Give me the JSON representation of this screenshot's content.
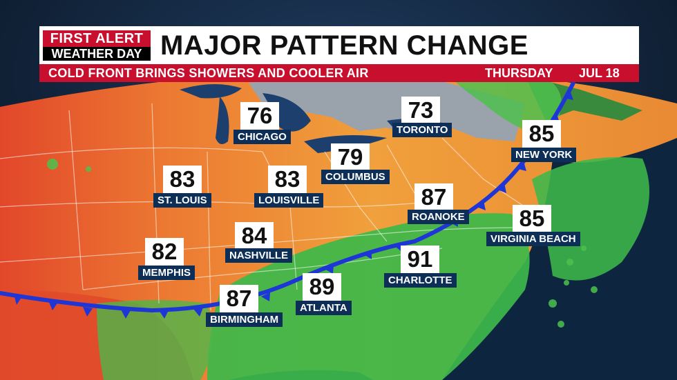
{
  "header": {
    "logo_line1": "FIRST ALERT",
    "logo_line2": "WEATHER DAY",
    "title": "MAJOR PATTERN CHANGE",
    "subtitle": "COLD FRONT BRINGS SHOWERS AND COOLER AIR",
    "day": "THURSDAY",
    "date": "JUL 18"
  },
  "cities": [
    {
      "name": "CHICAGO",
      "temp": "76"
    },
    {
      "name": "TORONTO",
      "temp": "73"
    },
    {
      "name": "NEW YORK",
      "temp": "85"
    },
    {
      "name": "COLUMBUS",
      "temp": "79"
    },
    {
      "name": "ST. LOUIS",
      "temp": "83"
    },
    {
      "name": "LOUISVILLE",
      "temp": "83"
    },
    {
      "name": "ROANOKE",
      "temp": "87"
    },
    {
      "name": "VIRGINIA BEACH",
      "temp": "85"
    },
    {
      "name": "NASHVILLE",
      "temp": "84"
    },
    {
      "name": "MEMPHIS",
      "temp": "82"
    },
    {
      "name": "CHARLOTTE",
      "temp": "91"
    },
    {
      "name": "ATLANTA",
      "temp": "89"
    },
    {
      "name": "BIRMINGHAM",
      "temp": "87"
    }
  ],
  "colors": {
    "brand_red": "#c8102e",
    "name_box": "#0d2f57",
    "cold_front": "#1f36d6",
    "hot": "#e8562a",
    "warm": "#f2a03a",
    "rain_green": "#3cb84a",
    "lakes": "#1c3f6e",
    "canada_gray": "#9aa3ab"
  }
}
